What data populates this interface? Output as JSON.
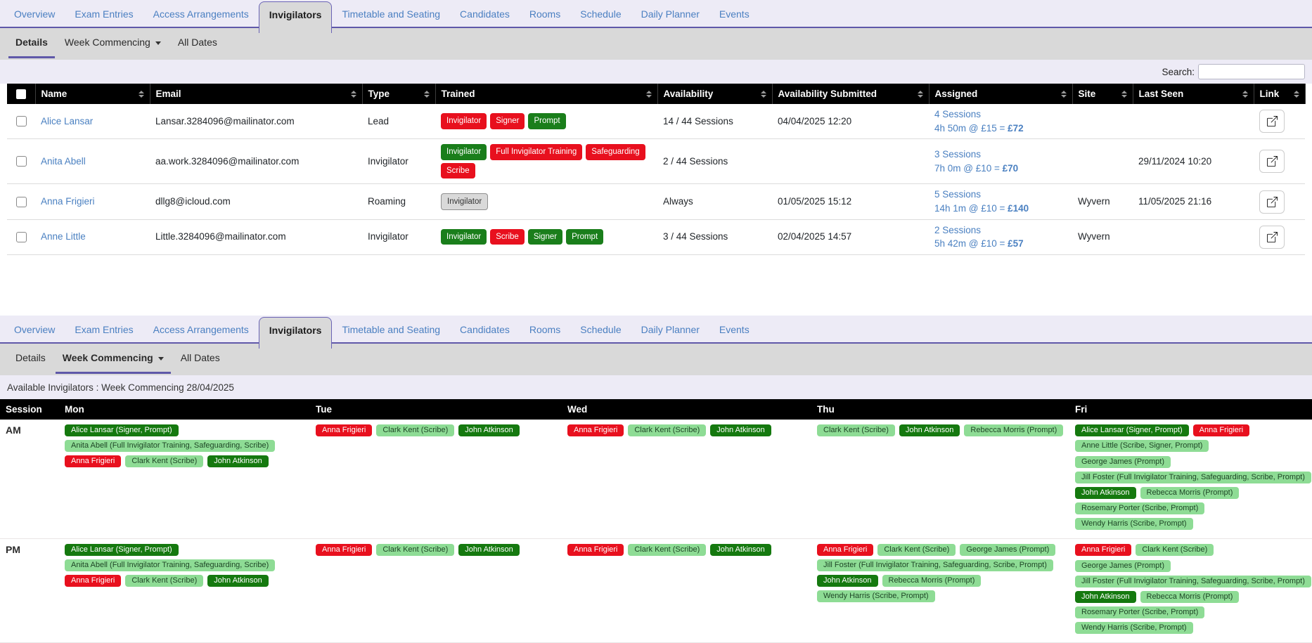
{
  "colors": {
    "accent_purple": "#5f58a9",
    "tab_link_blue": "#4a7fc1",
    "link_blue": "#4a80c1",
    "header_bg": "#000000",
    "bar_gray": "#d9d9d9",
    "page_lavender": "#edebf6",
    "badge_red": "#e8101e",
    "badge_green": "#1a7e1b",
    "badge_light_green": "#8edc95",
    "badge_gray": "#d9d9d9"
  },
  "tabs": {
    "items": [
      "Overview",
      "Exam Entries",
      "Access Arrangements",
      "Invigilators",
      "Timetable and Seating",
      "Candidates",
      "Rooms",
      "Schedule",
      "Daily Planner",
      "Events"
    ],
    "active": "Invigilators"
  },
  "sections": [
    {
      "name": "details",
      "subtabs": [
        {
          "label": "Details",
          "active": true,
          "caret": false
        },
        {
          "label": "Week Commencing",
          "active": false,
          "caret": true
        },
        {
          "label": "All Dates",
          "active": false,
          "caret": false
        }
      ],
      "search": {
        "label": "Search:",
        "value": ""
      },
      "table": {
        "columns": [
          "Name",
          "Email",
          "Type",
          "Trained",
          "Availability",
          "Availability Submitted",
          "Assigned",
          "Site",
          "Last Seen",
          "Link"
        ],
        "rows": [
          {
            "name": "Alice Lansar",
            "email": "Lansar.3284096@mailinator.com",
            "type": "Lead",
            "trained": [
              {
                "label": "Invigilator",
                "style": "red"
              },
              {
                "label": "Signer",
                "style": "red"
              },
              {
                "label": "Prompt",
                "style": "green"
              }
            ],
            "availability": "14 / 44 Sessions",
            "submitted": "04/04/2025 12:20",
            "assigned": {
              "sessions": "4 Sessions",
              "detail": "4h 50m @ £15 = ",
              "amount": "£72"
            },
            "site": "",
            "last_seen": ""
          },
          {
            "name": "Anita Abell",
            "email": "aa.work.3284096@mailinator.com",
            "type": "Invigilator",
            "trained": [
              {
                "label": "Invigilator",
                "style": "green"
              },
              {
                "label": "Full Invigilator Training",
                "style": "red"
              },
              {
                "label": "Safeguarding",
                "style": "red"
              },
              {
                "label": "Scribe",
                "style": "red"
              }
            ],
            "availability": "2 / 44 Sessions",
            "submitted": "",
            "assigned": {
              "sessions": "3 Sessions",
              "detail": "7h 0m @ £10 = ",
              "amount": "£70"
            },
            "site": "",
            "last_seen": "29/11/2024 10:20"
          },
          {
            "name": "Anna Frigieri",
            "email": "dllg8@icloud.com",
            "type": "Roaming",
            "trained": [
              {
                "label": "Invigilator",
                "style": "gray"
              }
            ],
            "availability": "Always",
            "submitted": "01/05/2025 15:12",
            "assigned": {
              "sessions": "5 Sessions",
              "detail": "14h 1m @ £10 = ",
              "amount": "£140"
            },
            "site": "Wyvern",
            "last_seen": "11/05/2025 21:16"
          },
          {
            "name": "Anne Little",
            "email": "Little.3284096@mailinator.com",
            "type": "Invigilator",
            "trained": [
              {
                "label": "Invigilator",
                "style": "green"
              },
              {
                "label": "Scribe",
                "style": "red"
              },
              {
                "label": "Signer",
                "style": "green"
              },
              {
                "label": "Prompt",
                "style": "green"
              }
            ],
            "availability": "3 / 44 Sessions",
            "submitted": "02/04/2025 14:57",
            "assigned": {
              "sessions": "2 Sessions",
              "detail": "5h 42m @ £10 = ",
              "amount": "£57"
            },
            "site": "Wyvern",
            "last_seen": ""
          }
        ]
      }
    },
    {
      "name": "week-commencing",
      "subtabs": [
        {
          "label": "Details",
          "active": false,
          "caret": false
        },
        {
          "label": "Week Commencing",
          "active": true,
          "caret": true
        },
        {
          "label": "All Dates",
          "active": false,
          "caret": false
        }
      ],
      "caption": "Available Invigilators : Week Commencing 28/04/2025",
      "schedule": {
        "columns": [
          "Session",
          "Mon",
          "Tue",
          "Wed",
          "Thu",
          "Fri"
        ],
        "rows": [
          {
            "session": "AM",
            "days": [
              [
                [
                  {
                    "label": "Alice Lansar (Signer, Prompt)",
                    "style": "green"
                  }
                ],
                [
                  {
                    "label": "Anita Abell (Full Invigilator Training, Safeguarding, Scribe)",
                    "style": "light"
                  }
                ],
                [
                  {
                    "label": "Anna Frigieri",
                    "style": "red"
                  },
                  {
                    "label": "Clark Kent (Scribe)",
                    "style": "light"
                  },
                  {
                    "label": "John Atkinson",
                    "style": "green"
                  }
                ]
              ],
              [
                [
                  {
                    "label": "Anna Frigieri",
                    "style": "red"
                  },
                  {
                    "label": "Clark Kent (Scribe)",
                    "style": "light"
                  },
                  {
                    "label": "John Atkinson",
                    "style": "green"
                  }
                ]
              ],
              [
                [
                  {
                    "label": "Anna Frigieri",
                    "style": "red"
                  },
                  {
                    "label": "Clark Kent (Scribe)",
                    "style": "light"
                  },
                  {
                    "label": "John Atkinson",
                    "style": "green"
                  }
                ]
              ],
              [
                [
                  {
                    "label": "Clark Kent (Scribe)",
                    "style": "light"
                  },
                  {
                    "label": "John Atkinson",
                    "style": "green"
                  },
                  {
                    "label": "Rebecca Morris (Prompt)",
                    "style": "light"
                  }
                ]
              ],
              [
                [
                  {
                    "label": "Alice Lansar (Signer, Prompt)",
                    "style": "green"
                  },
                  {
                    "label": "Anna Frigieri",
                    "style": "red"
                  }
                ],
                [
                  {
                    "label": "Anne Little (Scribe, Signer, Prompt)",
                    "style": "light"
                  },
                  {
                    "label": "George James (Prompt)",
                    "style": "light"
                  }
                ],
                [
                  {
                    "label": "Jill Foster (Full Invigilator Training, Safeguarding, Scribe, Prompt)",
                    "style": "light"
                  }
                ],
                [
                  {
                    "label": "John Atkinson",
                    "style": "green"
                  },
                  {
                    "label": "Rebecca Morris (Prompt)",
                    "style": "light"
                  }
                ],
                [
                  {
                    "label": "Rosemary Porter (Scribe, Prompt)",
                    "style": "light"
                  }
                ],
                [
                  {
                    "label": "Wendy Harris (Scribe, Prompt)",
                    "style": "light"
                  }
                ]
              ]
            ]
          },
          {
            "session": "PM",
            "days": [
              [
                [
                  {
                    "label": "Alice Lansar (Signer, Prompt)",
                    "style": "green"
                  }
                ],
                [
                  {
                    "label": "Anita Abell (Full Invigilator Training, Safeguarding, Scribe)",
                    "style": "light"
                  }
                ],
                [
                  {
                    "label": "Anna Frigieri",
                    "style": "red"
                  },
                  {
                    "label": "Clark Kent (Scribe)",
                    "style": "light"
                  },
                  {
                    "label": "John Atkinson",
                    "style": "green"
                  }
                ]
              ],
              [
                [
                  {
                    "label": "Anna Frigieri",
                    "style": "red"
                  },
                  {
                    "label": "Clark Kent (Scribe)",
                    "style": "light"
                  },
                  {
                    "label": "John Atkinson",
                    "style": "green"
                  }
                ]
              ],
              [
                [
                  {
                    "label": "Anna Frigieri",
                    "style": "red"
                  },
                  {
                    "label": "Clark Kent (Scribe)",
                    "style": "light"
                  },
                  {
                    "label": "John Atkinson",
                    "style": "green"
                  }
                ]
              ],
              [
                [
                  {
                    "label": "Anna Frigieri",
                    "style": "red"
                  },
                  {
                    "label": "Clark Kent (Scribe)",
                    "style": "light"
                  },
                  {
                    "label": "George James (Prompt)",
                    "style": "light"
                  }
                ],
                [
                  {
                    "label": "Jill Foster (Full Invigilator Training, Safeguarding, Scribe, Prompt)",
                    "style": "light"
                  }
                ],
                [
                  {
                    "label": "John Atkinson",
                    "style": "green"
                  },
                  {
                    "label": "Rebecca Morris (Prompt)",
                    "style": "light"
                  }
                ],
                [
                  {
                    "label": "Wendy Harris (Scribe, Prompt)",
                    "style": "light"
                  }
                ]
              ],
              [
                [
                  {
                    "label": "Anna Frigieri",
                    "style": "red"
                  },
                  {
                    "label": "Clark Kent (Scribe)",
                    "style": "light"
                  },
                  {
                    "label": "George James (Prompt)",
                    "style": "light"
                  }
                ],
                [
                  {
                    "label": "Jill Foster (Full Invigilator Training, Safeguarding, Scribe, Prompt)",
                    "style": "light"
                  }
                ],
                [
                  {
                    "label": "John Atkinson",
                    "style": "green"
                  },
                  {
                    "label": "Rebecca Morris (Prompt)",
                    "style": "light"
                  }
                ],
                [
                  {
                    "label": "Rosemary Porter (Scribe, Prompt)",
                    "style": "light"
                  }
                ],
                [
                  {
                    "label": "Wendy Harris (Scribe, Prompt)",
                    "style": "light"
                  }
                ]
              ]
            ]
          }
        ]
      }
    }
  ]
}
